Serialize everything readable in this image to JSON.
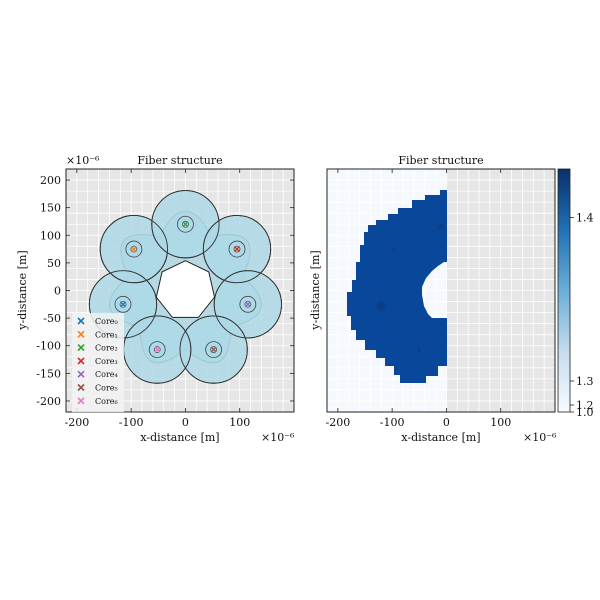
{
  "chart_data": [
    {
      "type": "scatter",
      "title": "Fiber structure",
      "xlabel": "x-distance [m]",
      "ylabel": "y-distance [m]",
      "x_scale_label": "×10⁻⁶",
      "y_scale_label": "×10⁻⁶",
      "xlim": [
        -220,
        200
      ],
      "ylim": [
        -220,
        220
      ],
      "xticks": [
        -200,
        -100,
        0,
        100
      ],
      "yticks": [
        -200,
        -150,
        -100,
        -50,
        0,
        50,
        100,
        150,
        200
      ],
      "grid": true,
      "legend_position": "lower-left",
      "center_hole": {
        "radius": 55
      },
      "cladding_radius": 62,
      "cores": [
        {
          "name": "Core₀",
          "x": -115,
          "y": -25,
          "color": "#1f77b4"
        },
        {
          "name": "Core₁",
          "x": -95,
          "y": 75,
          "color": "#ff7f0e"
        },
        {
          "name": "Core₂",
          "x": 0,
          "y": 120,
          "color": "#2ca02c"
        },
        {
          "name": "Core₃",
          "x": 95,
          "y": 75,
          "color": "#d62728"
        },
        {
          "name": "Core₄",
          "x": 115,
          "y": -25,
          "color": "#9467bd"
        },
        {
          "name": "Core₅",
          "x": 52,
          "y": -107,
          "color": "#8c564b"
        },
        {
          "name": "Core₆",
          "x": -52,
          "y": -107,
          "color": "#e377c2"
        }
      ]
    },
    {
      "type": "heatmap",
      "title": "Fiber structure",
      "xlabel": "x-distance [m]",
      "ylabel": "y-distance [m]",
      "x_scale_label": "×10⁻⁶",
      "xlim": [
        -220,
        200
      ],
      "ylim": [
        -220,
        220
      ],
      "xticks": [
        -200,
        -100,
        0,
        100
      ],
      "colorbar": {
        "ticks": [
          "1.4",
          "1.3",
          "1.2",
          "1.0"
        ],
        "min": 1.0,
        "max": 1.5
      }
    }
  ]
}
